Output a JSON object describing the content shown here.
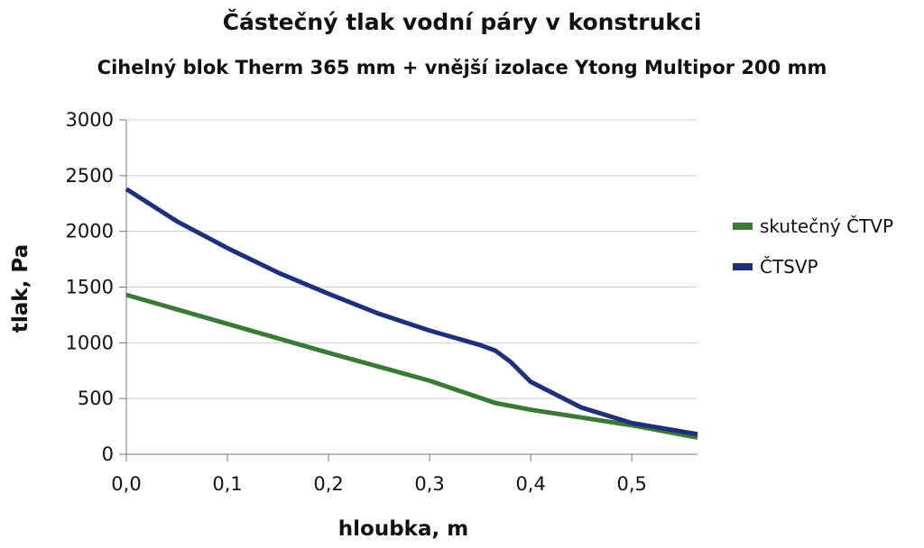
{
  "chart_data": {
    "type": "line",
    "title": "Částečný tlak vodní páry v konstrukci",
    "subtitle": "Cihelný blok Therm 365 mm + vnější izolace Ytong Multipor 200 mm",
    "xlabel": "hloubka, m",
    "ylabel": "tlak, Pa",
    "xlim": [
      0,
      0.565
    ],
    "ylim": [
      0,
      3000
    ],
    "x_ticks": [
      0,
      0.1,
      0.2,
      0.3,
      0.4,
      0.5
    ],
    "x_tick_labels": [
      "0,0",
      "0,1",
      "0,2",
      "0,3",
      "0,4",
      "0,5"
    ],
    "y_ticks": [
      0,
      500,
      1000,
      1500,
      2000,
      2500,
      3000
    ],
    "y_tick_labels": [
      "0",
      "500",
      "1000",
      "1500",
      "2000",
      "2500",
      "3000"
    ],
    "grid": "horizontal",
    "legend_position": "right",
    "series": [
      {
        "name": "skutečný ČTVP",
        "color": "#3a7a34",
        "x": [
          0,
          0.1,
          0.2,
          0.3,
          0.365,
          0.4,
          0.5,
          0.565
        ],
        "y": [
          1430,
          1170,
          910,
          660,
          460,
          400,
          260,
          150
        ]
      },
      {
        "name": "ČTSVP",
        "color": "#1f2f7a",
        "x": [
          0,
          0.05,
          0.1,
          0.15,
          0.2,
          0.25,
          0.3,
          0.35,
          0.365,
          0.38,
          0.4,
          0.45,
          0.5,
          0.565
        ],
        "y": [
          2380,
          2090,
          1850,
          1630,
          1440,
          1260,
          1110,
          980,
          930,
          830,
          650,
          420,
          280,
          180
        ]
      }
    ]
  }
}
